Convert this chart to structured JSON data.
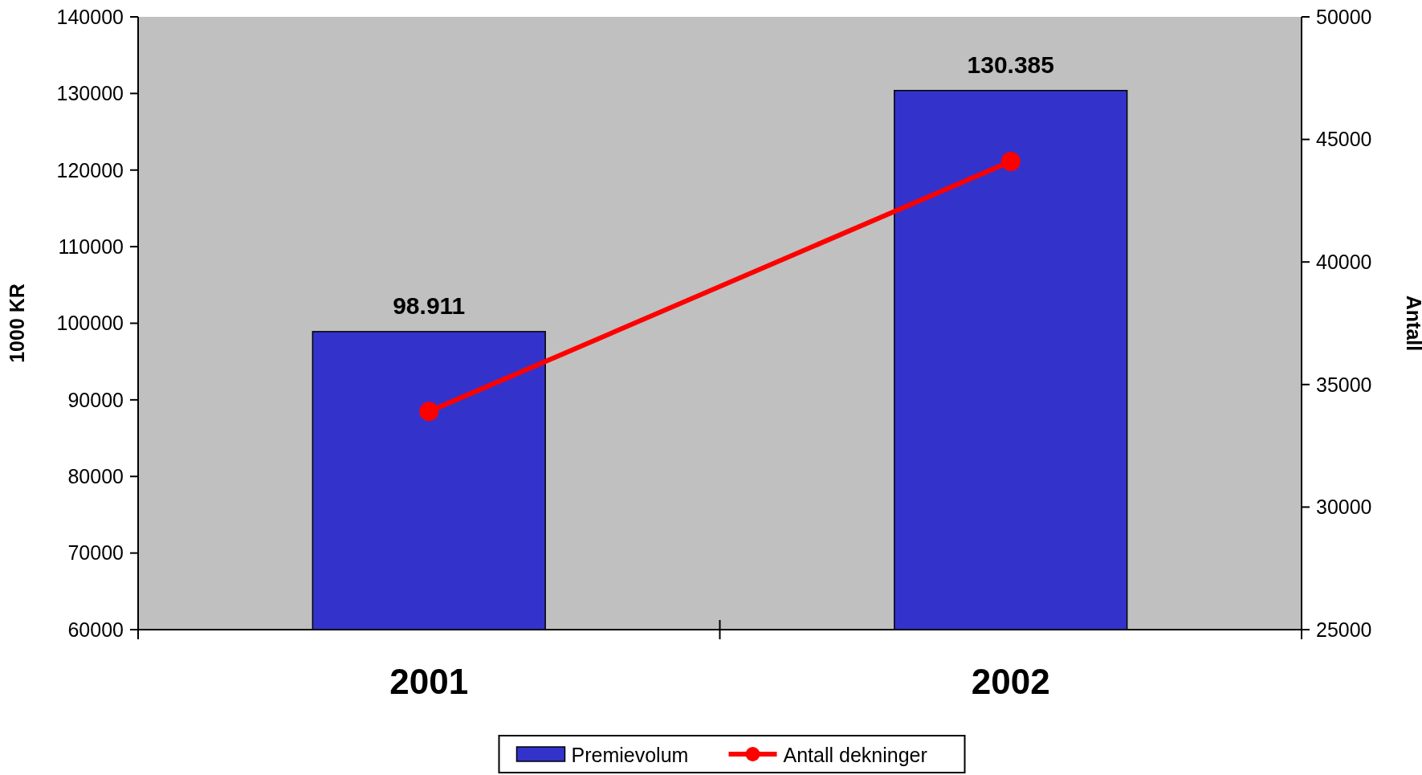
{
  "chart_data": {
    "type": "bar",
    "categories": [
      "2001",
      "2002"
    ],
    "ylabel": "1000 KR",
    "y2label": "Antall",
    "ylim": [
      60000,
      140000
    ],
    "yticks": [
      60000,
      70000,
      80000,
      90000,
      100000,
      110000,
      120000,
      130000,
      140000
    ],
    "y2lim": [
      25000,
      50000
    ],
    "y2ticks": [
      25000,
      30000,
      35000,
      40000,
      45000,
      50000
    ],
    "legend": "bottom",
    "grid": false,
    "marker": "circle",
    "series": [
      {
        "name": "Premievolum",
        "color": "#3333cc",
        "values": [
          98911,
          130385
        ],
        "value_labels": [
          "98.911",
          "130.385"
        ]
      },
      {
        "name": "Antall dekninger",
        "type": "line",
        "axis": "y2",
        "color": "#ff0000",
        "values": [
          33900,
          44100
        ]
      }
    ]
  }
}
